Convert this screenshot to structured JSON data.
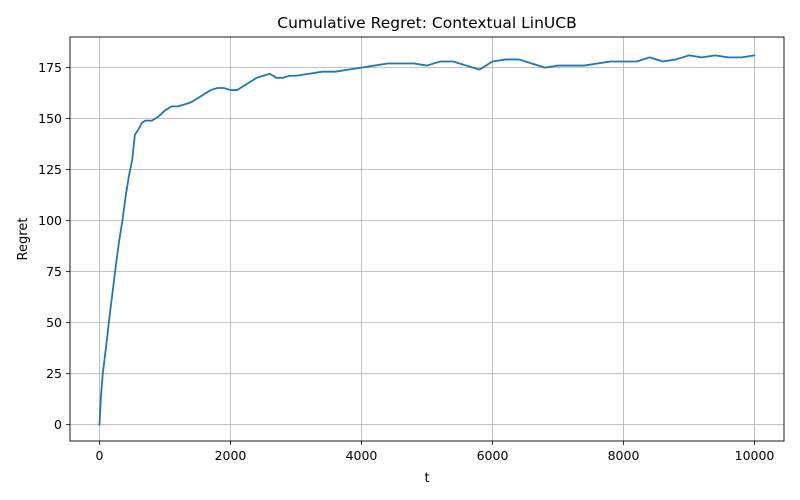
{
  "chart_data": {
    "type": "line",
    "title": "Cumulative Regret: Contextual LinUCB",
    "xlabel": "t",
    "ylabel": "Regret",
    "xlim": [
      -450,
      10450
    ],
    "ylim": [
      -8,
      190
    ],
    "x_ticks": [
      0,
      2000,
      4000,
      6000,
      8000,
      10000
    ],
    "y_ticks": [
      0,
      25,
      50,
      75,
      100,
      125,
      150,
      175
    ],
    "grid": true,
    "legend": "none",
    "series": [
      {
        "color": "#1f77b4",
        "x": [
          0,
          25,
          50,
          100,
          150,
          200,
          250,
          300,
          350,
          400,
          450,
          500,
          540,
          560,
          600,
          650,
          700,
          800,
          900,
          1000,
          1100,
          1200,
          1300,
          1400,
          1500,
          1600,
          1700,
          1800,
          1900,
          2000,
          2100,
          2200,
          2300,
          2400,
          2500,
          2600,
          2700,
          2800,
          2900,
          3000,
          3200,
          3400,
          3600,
          3800,
          4000,
          4200,
          4400,
          4600,
          4800,
          5000,
          5200,
          5400,
          5600,
          5800,
          6000,
          6200,
          6400,
          6600,
          6800,
          7000,
          7200,
          7400,
          7600,
          7800,
          8000,
          8200,
          8400,
          8600,
          8800,
          9000,
          9200,
          9400,
          9600,
          9800,
          10000
        ],
        "y": [
          0,
          15,
          25,
          38,
          52,
          65,
          78,
          90,
          100,
          112,
          122,
          130,
          142,
          143,
          145,
          148,
          149,
          149,
          151,
          154,
          156,
          156,
          157,
          158,
          160,
          162,
          164,
          165,
          165,
          164,
          164,
          166,
          168,
          170,
          171,
          172,
          170,
          170,
          171,
          171,
          172,
          173,
          173,
          174,
          175,
          176,
          177,
          177,
          177,
          176,
          178,
          178,
          176,
          174,
          178,
          179,
          179,
          177,
          175,
          176,
          176,
          176,
          177,
          178,
          178,
          178,
          180,
          178,
          179,
          181,
          180,
          181,
          180,
          180,
          181
        ]
      }
    ]
  }
}
